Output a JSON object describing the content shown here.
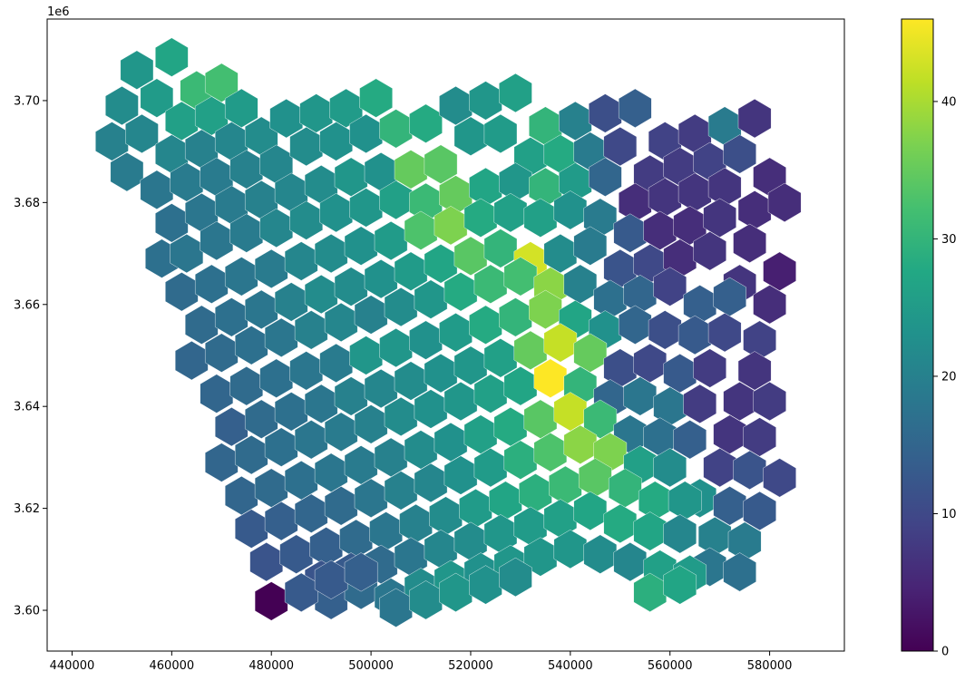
{
  "chart_data": {
    "type": "heatmap",
    "subtype": "hexbin-map",
    "title": "",
    "xlabel": "",
    "ylabel": "",
    "y_offset_label": "1e6",
    "xlim": [
      435000,
      595000
    ],
    "ylim": [
      3592000,
      3716000
    ],
    "x_ticks": [
      440000,
      460000,
      480000,
      500000,
      520000,
      540000,
      560000,
      580000
    ],
    "x_tick_labels": [
      "440000",
      "460000",
      "480000",
      "500000",
      "520000",
      "540000",
      "560000",
      "580000"
    ],
    "y_ticks": [
      3600000,
      3620000,
      3640000,
      3660000,
      3680000,
      3700000
    ],
    "y_tick_labels": [
      "3.60",
      "3.62",
      "3.64",
      "3.66",
      "3.68",
      "3.70"
    ],
    "colorbar": {
      "colormap": "viridis",
      "range": [
        0,
        46
      ],
      "ticks": [
        0,
        10,
        20,
        30,
        40
      ],
      "tick_labels": [
        "0",
        "10",
        "20",
        "30",
        "40"
      ]
    },
    "grid": false,
    "hex_size": 3800,
    "hexbins": [
      [
        453000,
        3706000,
        24
      ],
      [
        460000,
        3708500,
        27
      ],
      [
        465000,
        3702000,
        31
      ],
      [
        470000,
        3703500,
        32
      ],
      [
        450000,
        3699000,
        22
      ],
      [
        457000,
        3700500,
        25
      ],
      [
        462000,
        3696000,
        26
      ],
      [
        468000,
        3697000,
        26
      ],
      [
        474000,
        3698500,
        25
      ],
      [
        448000,
        3692000,
        20
      ],
      [
        454000,
        3693500,
        21
      ],
      [
        460000,
        3689500,
        21
      ],
      [
        466000,
        3690500,
        20
      ],
      [
        472000,
        3692000,
        21
      ],
      [
        478000,
        3693000,
        22
      ],
      [
        483000,
        3696500,
        23
      ],
      [
        489000,
        3697500,
        24
      ],
      [
        495000,
        3698500,
        25
      ],
      [
        501000,
        3700500,
        28
      ],
      [
        451000,
        3686000,
        19
      ],
      [
        457000,
        3682500,
        18
      ],
      [
        463000,
        3684000,
        19
      ],
      [
        469000,
        3685000,
        19
      ],
      [
        475000,
        3686500,
        20
      ],
      [
        481000,
        3687500,
        21
      ],
      [
        487000,
        3691000,
        22
      ],
      [
        493000,
        3692000,
        23
      ],
      [
        499000,
        3693500,
        23
      ],
      [
        505000,
        3694500,
        30
      ],
      [
        511000,
        3695500,
        28
      ],
      [
        517000,
        3699000,
        22
      ],
      [
        523000,
        3700000,
        24
      ],
      [
        529000,
        3701500,
        26
      ],
      [
        535000,
        3695000,
        30
      ],
      [
        541000,
        3696000,
        20
      ],
      [
        547000,
        3697500,
        11
      ],
      [
        553000,
        3698500,
        14
      ],
      [
        559000,
        3692000,
        9
      ],
      [
        565000,
        3693500,
        8
      ],
      [
        571000,
        3695000,
        19
      ],
      [
        577000,
        3696500,
        7
      ],
      [
        460000,
        3676000,
        17
      ],
      [
        466000,
        3678000,
        18
      ],
      [
        472000,
        3679500,
        19
      ],
      [
        478000,
        3680500,
        20
      ],
      [
        484000,
        3682000,
        21
      ],
      [
        490000,
        3683500,
        22
      ],
      [
        496000,
        3685000,
        24
      ],
      [
        502000,
        3686000,
        23
      ],
      [
        508000,
        3686500,
        35
      ],
      [
        514000,
        3687500,
        34
      ],
      [
        520000,
        3693000,
        24
      ],
      [
        526000,
        3693500,
        25
      ],
      [
        532000,
        3689000,
        26
      ],
      [
        538000,
        3689500,
        28
      ],
      [
        544000,
        3690000,
        19
      ],
      [
        550000,
        3691000,
        10
      ],
      [
        556000,
        3685500,
        8
      ],
      [
        562000,
        3687000,
        8
      ],
      [
        568000,
        3688000,
        9
      ],
      [
        574000,
        3689500,
        11
      ],
      [
        580000,
        3685000,
        6
      ],
      [
        458000,
        3669000,
        17
      ],
      [
        463000,
        3670000,
        18
      ],
      [
        469000,
        3672500,
        18
      ],
      [
        475000,
        3674000,
        19
      ],
      [
        481000,
        3675000,
        21
      ],
      [
        487000,
        3676500,
        22
      ],
      [
        493000,
        3678000,
        23
      ],
      [
        499000,
        3679000,
        24
      ],
      [
        505000,
        3680500,
        26
      ],
      [
        511000,
        3680000,
        31
      ],
      [
        517000,
        3681500,
        35
      ],
      [
        523000,
        3683000,
        27
      ],
      [
        529000,
        3684000,
        24
      ],
      [
        535000,
        3683000,
        30
      ],
      [
        541000,
        3684000,
        25
      ],
      [
        547000,
        3685000,
        15
      ],
      [
        553000,
        3680000,
        6
      ],
      [
        559000,
        3681000,
        7
      ],
      [
        565000,
        3682000,
        7
      ],
      [
        571000,
        3683000,
        7
      ],
      [
        577000,
        3678500,
        6
      ],
      [
        583000,
        3680000,
        6
      ],
      [
        462000,
        3662500,
        16
      ],
      [
        468000,
        3664000,
        17
      ],
      [
        474000,
        3665500,
        18
      ],
      [
        480000,
        3667000,
        19
      ],
      [
        486000,
        3668500,
        21
      ],
      [
        492000,
        3670000,
        22
      ],
      [
        498000,
        3671500,
        23
      ],
      [
        504000,
        3672500,
        25
      ],
      [
        510000,
        3674500,
        33
      ],
      [
        516000,
        3675500,
        37
      ],
      [
        522000,
        3677000,
        28
      ],
      [
        528000,
        3678000,
        26
      ],
      [
        534000,
        3677000,
        26
      ],
      [
        540000,
        3678500,
        23
      ],
      [
        546000,
        3677000,
        19
      ],
      [
        552000,
        3674000,
        13
      ],
      [
        558000,
        3674500,
        6
      ],
      [
        564000,
        3675500,
        6
      ],
      [
        570000,
        3677000,
        7
      ],
      [
        576000,
        3672000,
        6
      ],
      [
        582000,
        3666500,
        4
      ],
      [
        466000,
        3656000,
        16
      ],
      [
        472000,
        3657500,
        17
      ],
      [
        478000,
        3659000,
        18
      ],
      [
        484000,
        3660500,
        20
      ],
      [
        490000,
        3662000,
        22
      ],
      [
        496000,
        3663500,
        22
      ],
      [
        502000,
        3665000,
        23
      ],
      [
        508000,
        3666500,
        25
      ],
      [
        514000,
        3668000,
        27
      ],
      [
        520000,
        3669500,
        34
      ],
      [
        526000,
        3671000,
        30
      ],
      [
        532000,
        3668500,
        43
      ],
      [
        538000,
        3670000,
        22
      ],
      [
        544000,
        3671500,
        19
      ],
      [
        550000,
        3667000,
        12
      ],
      [
        556000,
        3668000,
        10
      ],
      [
        562000,
        3669000,
        6
      ],
      [
        568000,
        3670500,
        7
      ],
      [
        574000,
        3664000,
        7
      ],
      [
        580000,
        3660000,
        6
      ],
      [
        464000,
        3649000,
        15
      ],
      [
        470000,
        3650500,
        16
      ],
      [
        476000,
        3652000,
        17
      ],
      [
        482000,
        3653500,
        18
      ],
      [
        488000,
        3655000,
        20
      ],
      [
        494000,
        3656500,
        21
      ],
      [
        500000,
        3658000,
        20
      ],
      [
        506000,
        3659500,
        22
      ],
      [
        512000,
        3661000,
        24
      ],
      [
        518000,
        3662500,
        28
      ],
      [
        524000,
        3664000,
        31
      ],
      [
        530000,
        3665500,
        32
      ],
      [
        536000,
        3663500,
        38
      ],
      [
        542000,
        3664000,
        20
      ],
      [
        548000,
        3661000,
        17
      ],
      [
        554000,
        3662000,
        15
      ],
      [
        560000,
        3663500,
        9
      ],
      [
        566000,
        3660000,
        14
      ],
      [
        572000,
        3661500,
        14
      ],
      [
        578000,
        3653000,
        9
      ],
      [
        469000,
        3642500,
        15
      ],
      [
        475000,
        3644000,
        16
      ],
      [
        481000,
        3645500,
        17
      ],
      [
        487000,
        3647000,
        18
      ],
      [
        493000,
        3648500,
        19
      ],
      [
        499000,
        3650000,
        24
      ],
      [
        505000,
        3651500,
        24
      ],
      [
        511000,
        3653000,
        23
      ],
      [
        517000,
        3654500,
        25
      ],
      [
        523000,
        3656000,
        28
      ],
      [
        529000,
        3657500,
        30
      ],
      [
        535000,
        3659000,
        37
      ],
      [
        541000,
        3657000,
        27
      ],
      [
        547000,
        3655000,
        23
      ],
      [
        553000,
        3656000,
        15
      ],
      [
        559000,
        3655000,
        11
      ],
      [
        565000,
        3654000,
        13
      ],
      [
        571000,
        3654500,
        10
      ],
      [
        577000,
        3647000,
        7
      ],
      [
        472000,
        3636000,
        14
      ],
      [
        478000,
        3637500,
        16
      ],
      [
        484000,
        3639000,
        17
      ],
      [
        490000,
        3640500,
        18
      ],
      [
        496000,
        3642000,
        20
      ],
      [
        502000,
        3643500,
        21
      ],
      [
        508000,
        3645000,
        22
      ],
      [
        514000,
        3646500,
        23
      ],
      [
        520000,
        3648000,
        24
      ],
      [
        526000,
        3649500,
        26
      ],
      [
        532000,
        3651000,
        35
      ],
      [
        538000,
        3652500,
        42
      ],
      [
        544000,
        3650500,
        35
      ],
      [
        550000,
        3647500,
        11
      ],
      [
        556000,
        3648500,
        10
      ],
      [
        562000,
        3646500,
        13
      ],
      [
        568000,
        3647500,
        8
      ],
      [
        574000,
        3641000,
        7
      ],
      [
        580000,
        3641000,
        8
      ],
      [
        470000,
        3629000,
        15
      ],
      [
        476000,
        3630500,
        16
      ],
      [
        482000,
        3632000,
        17
      ],
      [
        488000,
        3633500,
        18
      ],
      [
        494000,
        3635000,
        19
      ],
      [
        500000,
        3636500,
        20
      ],
      [
        506000,
        3638000,
        22
      ],
      [
        512000,
        3639500,
        23
      ],
      [
        518000,
        3641000,
        24
      ],
      [
        524000,
        3642500,
        26
      ],
      [
        530000,
        3644000,
        27
      ],
      [
        536000,
        3645500,
        46
      ],
      [
        542000,
        3644000,
        30
      ],
      [
        548000,
        3641500,
        15
      ],
      [
        554000,
        3642000,
        18
      ],
      [
        560000,
        3640000,
        18
      ],
      [
        566000,
        3640500,
        8
      ],
      [
        572000,
        3634500,
        7
      ],
      [
        578000,
        3634000,
        8
      ],
      [
        474000,
        3622500,
        15
      ],
      [
        480000,
        3624000,
        16
      ],
      [
        486000,
        3625500,
        17
      ],
      [
        492000,
        3627000,
        18
      ],
      [
        498000,
        3628500,
        19
      ],
      [
        504000,
        3630000,
        20
      ],
      [
        510000,
        3631500,
        22
      ],
      [
        516000,
        3633000,
        23
      ],
      [
        522000,
        3634500,
        26
      ],
      [
        528000,
        3636000,
        28
      ],
      [
        534000,
        3637500,
        34
      ],
      [
        540000,
        3639000,
        42
      ],
      [
        546000,
        3637500,
        31
      ],
      [
        552000,
        3634500,
        18
      ],
      [
        558000,
        3634000,
        17
      ],
      [
        564000,
        3633500,
        14
      ],
      [
        570000,
        3628000,
        9
      ],
      [
        576000,
        3627500,
        12
      ],
      [
        582000,
        3626000,
        10
      ],
      [
        476000,
        3616000,
        13
      ],
      [
        482000,
        3617500,
        14
      ],
      [
        488000,
        3619000,
        15
      ],
      [
        494000,
        3620500,
        16
      ],
      [
        500000,
        3622000,
        18
      ],
      [
        506000,
        3623500,
        20
      ],
      [
        512000,
        3625000,
        21
      ],
      [
        518000,
        3626500,
        23
      ],
      [
        524000,
        3628000,
        25
      ],
      [
        530000,
        3629500,
        29
      ],
      [
        536000,
        3631000,
        33
      ],
      [
        542000,
        3632500,
        38
      ],
      [
        548000,
        3631000,
        37
      ],
      [
        554000,
        3628500,
        26
      ],
      [
        560000,
        3628000,
        22
      ],
      [
        566000,
        3622000,
        23
      ],
      [
        572000,
        3620500,
        14
      ],
      [
        578000,
        3619500,
        13
      ],
      [
        479000,
        3609500,
        12
      ],
      [
        485000,
        3611000,
        13
      ],
      [
        491000,
        3612500,
        14
      ],
      [
        497000,
        3614000,
        16
      ],
      [
        503000,
        3615500,
        18
      ],
      [
        509000,
        3617000,
        20
      ],
      [
        515000,
        3618500,
        22
      ],
      [
        521000,
        3620000,
        25
      ],
      [
        527000,
        3621500,
        27
      ],
      [
        533000,
        3623000,
        29
      ],
      [
        539000,
        3624500,
        31
      ],
      [
        545000,
        3626000,
        34
      ],
      [
        551000,
        3624000,
        30
      ],
      [
        557000,
        3621500,
        28
      ],
      [
        563000,
        3621500,
        24
      ],
      [
        569000,
        3614500,
        20
      ],
      [
        575000,
        3613500,
        19
      ],
      [
        490000,
        3606000,
        12
      ],
      [
        496000,
        3607500,
        13
      ],
      [
        502000,
        3609000,
        16
      ],
      [
        508000,
        3610500,
        18
      ],
      [
        514000,
        3612000,
        21
      ],
      [
        520000,
        3613500,
        22
      ],
      [
        526000,
        3615000,
        24
      ],
      [
        532000,
        3616500,
        25
      ],
      [
        538000,
        3618000,
        26
      ],
      [
        544000,
        3619500,
        27
      ],
      [
        550000,
        3617000,
        28
      ],
      [
        556000,
        3615500,
        27
      ],
      [
        562000,
        3615000,
        21
      ],
      [
        568000,
        3608500,
        18
      ],
      [
        574000,
        3607500,
        17
      ],
      [
        486000,
        3603500,
        13
      ],
      [
        492000,
        3602000,
        14
      ],
      [
        498000,
        3604000,
        16
      ],
      [
        504000,
        3602500,
        18
      ],
      [
        510000,
        3604500,
        22
      ],
      [
        516000,
        3606000,
        24
      ],
      [
        522000,
        3607500,
        23
      ],
      [
        528000,
        3609000,
        24
      ],
      [
        534000,
        3610500,
        24
      ],
      [
        540000,
        3612000,
        24
      ],
      [
        546000,
        3611000,
        22
      ],
      [
        552000,
        3609500,
        21
      ],
      [
        558000,
        3608000,
        26
      ],
      [
        564000,
        3607000,
        25
      ],
      [
        480000,
        3601800,
        0
      ],
      [
        486000,
        3603500,
        13
      ],
      [
        492000,
        3606000,
        13
      ],
      [
        498000,
        3607500,
        14
      ],
      [
        505000,
        3600500,
        18
      ],
      [
        511000,
        3602000,
        22
      ],
      [
        517000,
        3603500,
        24
      ],
      [
        523000,
        3605000,
        23
      ],
      [
        529000,
        3606500,
        22
      ],
      [
        556000,
        3603500,
        29
      ],
      [
        562000,
        3605000,
        27
      ]
    ]
  }
}
